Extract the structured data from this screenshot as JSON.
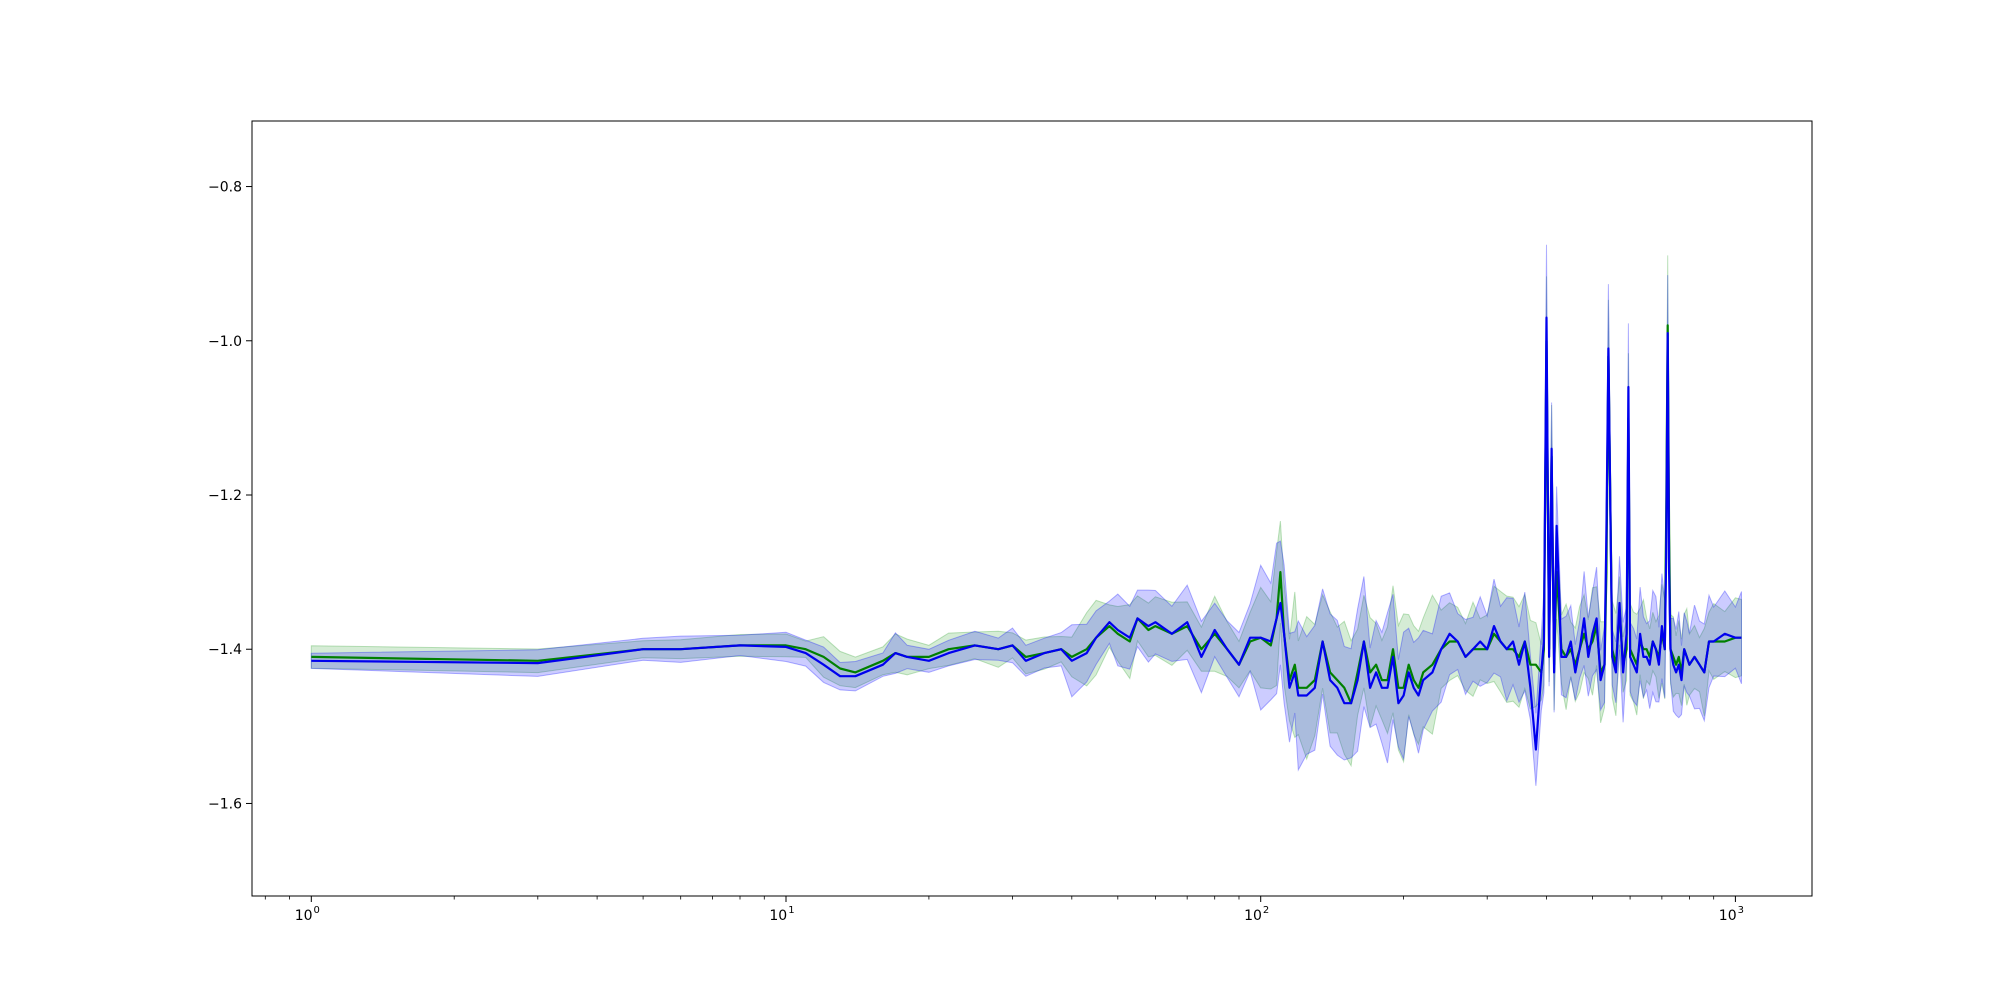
{
  "chart_data": {
    "type": "line",
    "title": "",
    "xlabel": "",
    "ylabel": "",
    "xscale": "log",
    "xlim": [
      0.75,
      1450
    ],
    "ylim": [
      -1.72,
      -0.715
    ],
    "grid": false,
    "legend": "none",
    "x_ticks": [
      {
        "value": 1,
        "base": "10",
        "exp": "0"
      },
      {
        "value": 10,
        "base": "10",
        "exp": "1"
      },
      {
        "value": 100,
        "base": "10",
        "exp": "2"
      },
      {
        "value": 1000,
        "base": "10",
        "exp": "3"
      }
    ],
    "y_ticks": [
      {
        "value": -0.8,
        "label": "−0.8"
      },
      {
        "value": -1.0,
        "label": "−1.0"
      },
      {
        "value": -1.2,
        "label": "−1.2"
      },
      {
        "value": -1.4,
        "label": "−1.4"
      },
      {
        "value": -1.6,
        "label": "−1.6"
      }
    ],
    "series": [
      {
        "color": "#008000",
        "band_color": "#2ca02c",
        "x": [
          1,
          3,
          5,
          6,
          8,
          10,
          11,
          12,
          13,
          14,
          16,
          17,
          18,
          20,
          22,
          25,
          28,
          30,
          32,
          35,
          38,
          40,
          43,
          45,
          48,
          50,
          53,
          55,
          58,
          60,
          65,
          70,
          75,
          80,
          85,
          90,
          95,
          100,
          105,
          108,
          110,
          112,
          115,
          118,
          120,
          125,
          130,
          135,
          140,
          145,
          150,
          155,
          160,
          165,
          170,
          175,
          180,
          185,
          190,
          195,
          200,
          205,
          210,
          215,
          220,
          230,
          240,
          250,
          260,
          270,
          280,
          290,
          300,
          310,
          320,
          330,
          340,
          350,
          360,
          370,
          380,
          390,
          395,
          400,
          405,
          410,
          415,
          420,
          430,
          440,
          450,
          460,
          470,
          480,
          490,
          500,
          510,
          520,
          530,
          535,
          540,
          550,
          560,
          570,
          580,
          590,
          595,
          600,
          610,
          620,
          630,
          640,
          650,
          660,
          670,
          680,
          690,
          700,
          710,
          715,
          720,
          725,
          730,
          740,
          750,
          760,
          770,
          780,
          790,
          800,
          820,
          840,
          860,
          880,
          900,
          950,
          1000,
          1030
        ],
        "y": [
          -1.41,
          -1.415,
          -1.4,
          -1.4,
          -1.395,
          -1.395,
          -1.4,
          -1.41,
          -1.425,
          -1.43,
          -1.415,
          -1.405,
          -1.41,
          -1.41,
          -1.4,
          -1.395,
          -1.4,
          -1.395,
          -1.41,
          -1.405,
          -1.4,
          -1.41,
          -1.4,
          -1.385,
          -1.37,
          -1.38,
          -1.39,
          -1.36,
          -1.375,
          -1.37,
          -1.38,
          -1.37,
          -1.4,
          -1.38,
          -1.4,
          -1.42,
          -1.39,
          -1.385,
          -1.395,
          -1.36,
          -1.3,
          -1.38,
          -1.44,
          -1.42,
          -1.45,
          -1.45,
          -1.44,
          -1.39,
          -1.43,
          -1.44,
          -1.45,
          -1.47,
          -1.43,
          -1.39,
          -1.43,
          -1.42,
          -1.44,
          -1.44,
          -1.4,
          -1.45,
          -1.45,
          -1.42,
          -1.44,
          -1.45,
          -1.43,
          -1.42,
          -1.4,
          -1.39,
          -1.39,
          -1.41,
          -1.4,
          -1.4,
          -1.4,
          -1.38,
          -1.39,
          -1.4,
          -1.4,
          -1.41,
          -1.39,
          -1.42,
          -1.42,
          -1.43,
          -1.4,
          -1.0,
          -1.4,
          -1.15,
          -1.42,
          -1.3,
          -1.4,
          -1.41,
          -1.4,
          -1.42,
          -1.4,
          -1.38,
          -1.4,
          -1.39,
          -1.37,
          -1.43,
          -1.42,
          -1.3,
          -1.02,
          -1.4,
          -1.42,
          -1.35,
          -1.42,
          -1.4,
          -1.1,
          -1.4,
          -1.41,
          -1.42,
          -1.39,
          -1.4,
          -1.4,
          -1.41,
          -1.39,
          -1.4,
          -1.41,
          -1.38,
          -1.4,
          -1.23,
          -0.98,
          -1.25,
          -1.4,
          -1.41,
          -1.42,
          -1.41,
          -1.43,
          -1.4,
          -1.41,
          -1.42,
          -1.41,
          -1.42,
          -1.43,
          -1.39,
          -1.39,
          -1.39,
          -1.385,
          -1.385
        ]
      },
      {
        "color": "#0000ee",
        "band_color": "#0000ff",
        "x": [
          1,
          3,
          5,
          6,
          8,
          10,
          11,
          12,
          13,
          14,
          16,
          17,
          18,
          20,
          22,
          25,
          28,
          30,
          32,
          35,
          38,
          40,
          43,
          45,
          48,
          50,
          53,
          55,
          58,
          60,
          65,
          70,
          75,
          80,
          85,
          90,
          95,
          100,
          105,
          108,
          110,
          112,
          115,
          118,
          120,
          125,
          130,
          135,
          140,
          145,
          150,
          155,
          160,
          165,
          170,
          175,
          180,
          185,
          190,
          195,
          200,
          205,
          210,
          215,
          220,
          230,
          240,
          250,
          260,
          270,
          280,
          290,
          300,
          310,
          320,
          330,
          340,
          350,
          360,
          370,
          380,
          390,
          395,
          400,
          405,
          410,
          415,
          420,
          430,
          440,
          450,
          460,
          470,
          480,
          490,
          500,
          510,
          520,
          530,
          535,
          540,
          550,
          560,
          570,
          580,
          590,
          595,
          600,
          610,
          620,
          630,
          640,
          650,
          660,
          670,
          680,
          690,
          700,
          710,
          715,
          720,
          725,
          730,
          740,
          750,
          760,
          770,
          780,
          790,
          800,
          820,
          840,
          860,
          880,
          900,
          950,
          1000,
          1030
        ],
        "y": [
          -1.415,
          -1.418,
          -1.4,
          -1.4,
          -1.395,
          -1.397,
          -1.405,
          -1.42,
          -1.435,
          -1.435,
          -1.42,
          -1.405,
          -1.41,
          -1.415,
          -1.405,
          -1.395,
          -1.4,
          -1.395,
          -1.415,
          -1.405,
          -1.4,
          -1.415,
          -1.405,
          -1.385,
          -1.365,
          -1.375,
          -1.385,
          -1.36,
          -1.37,
          -1.365,
          -1.38,
          -1.365,
          -1.41,
          -1.375,
          -1.4,
          -1.42,
          -1.385,
          -1.385,
          -1.39,
          -1.36,
          -1.34,
          -1.38,
          -1.45,
          -1.43,
          -1.46,
          -1.46,
          -1.45,
          -1.39,
          -1.44,
          -1.45,
          -1.47,
          -1.47,
          -1.44,
          -1.39,
          -1.45,
          -1.43,
          -1.45,
          -1.45,
          -1.41,
          -1.47,
          -1.46,
          -1.43,
          -1.45,
          -1.46,
          -1.44,
          -1.43,
          -1.4,
          -1.38,
          -1.39,
          -1.41,
          -1.4,
          -1.39,
          -1.4,
          -1.37,
          -1.39,
          -1.4,
          -1.39,
          -1.42,
          -1.39,
          -1.45,
          -1.53,
          -1.43,
          -1.39,
          -0.97,
          -1.41,
          -1.14,
          -1.43,
          -1.24,
          -1.41,
          -1.41,
          -1.39,
          -1.43,
          -1.4,
          -1.36,
          -1.41,
          -1.38,
          -1.36,
          -1.44,
          -1.42,
          -1.25,
          -1.01,
          -1.41,
          -1.43,
          -1.34,
          -1.43,
          -1.38,
          -1.06,
          -1.41,
          -1.42,
          -1.43,
          -1.38,
          -1.41,
          -1.41,
          -1.42,
          -1.39,
          -1.4,
          -1.42,
          -1.37,
          -1.4,
          -1.28,
          -0.99,
          -1.3,
          -1.4,
          -1.42,
          -1.43,
          -1.42,
          -1.44,
          -1.4,
          -1.41,
          -1.42,
          -1.41,
          -1.42,
          -1.43,
          -1.39,
          -1.39,
          -1.38,
          -1.385,
          -1.385
        ]
      }
    ]
  }
}
